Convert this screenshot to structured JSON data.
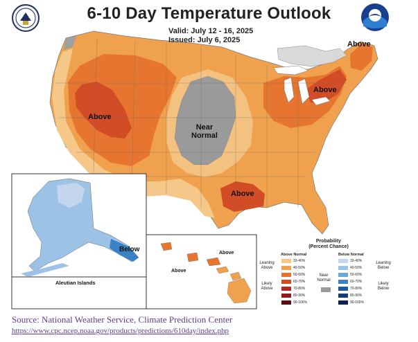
{
  "title": "6-10 Day Temperature Outlook",
  "valid": "Valid:  July 12 - 16, 2025",
  "issued": "Issued:  July 6, 2025",
  "region_labels": {
    "west_above": "Above",
    "near_normal_line1": "Near",
    "near_normal_line2": "Normal",
    "northeast_above": "Above",
    "maine_above": "Above",
    "gulf_above": "Above",
    "alaska_below": "Below",
    "hawaii_above_1": "Above",
    "hawaii_above_2": "Above",
    "aleutian": "Aleutian Islands"
  },
  "legend": {
    "title_line1": "Probability",
    "title_line2": "(Percent Chance)",
    "above_header": "Above Normal",
    "below_header": "Below Normal",
    "near_normal": "Near Normal",
    "leaning_above": "Leaning Above",
    "likely_above": "Likely Above",
    "leaning_below": "Leaning Below",
    "likely_below": "Likely Below",
    "above_bins": [
      {
        "label": "33-40%",
        "color": "#f5c88a"
      },
      {
        "label": "40-50%",
        "color": "#efa14d"
      },
      {
        "label": "50-60%",
        "color": "#e5752f"
      },
      {
        "label": "60-70%",
        "color": "#d24c26"
      },
      {
        "label": "70-80%",
        "color": "#b32a24"
      },
      {
        "label": "80-90%",
        "color": "#8a1a1c"
      },
      {
        "label": "90-100%",
        "color": "#5a0d10"
      }
    ],
    "below_bins": [
      {
        "label": "33-40%",
        "color": "#c3d6ec"
      },
      {
        "label": "40-50%",
        "color": "#9cc3e6"
      },
      {
        "label": "50-60%",
        "color": "#6aa7d9"
      },
      {
        "label": "60-70%",
        "color": "#3b82c4"
      },
      {
        "label": "70-80%",
        "color": "#1f5a9e"
      },
      {
        "label": "80-90%",
        "color": "#163c78"
      },
      {
        "label": "90-100%",
        "color": "#0d2250"
      }
    ],
    "near_normal_color": "#9a9a9a"
  },
  "source": "Source: National Weather Service, Climate Prediction Center",
  "source_url": "https://www.cpc.ncep.noaa.gov/products/predictions/610day/index.php",
  "colors": {
    "above_33_40": "#f5c88a",
    "above_40_50": "#efa14d",
    "above_50_60": "#e5752f",
    "above_60_70": "#d24c26",
    "near_normal": "#9a9a9a",
    "below_alaska": "#9cc3e6",
    "below_alaska_dark": "#3b82c4",
    "source_text": "#5b3f8e"
  }
}
